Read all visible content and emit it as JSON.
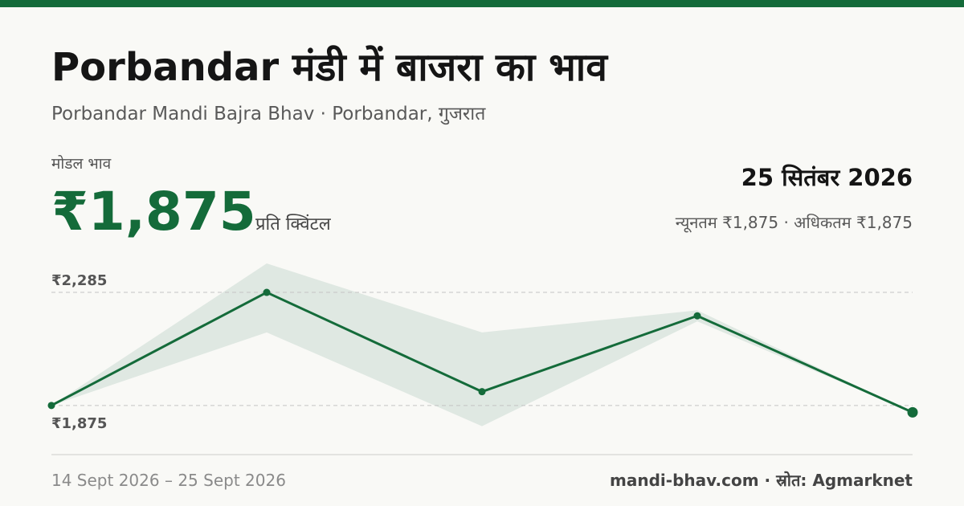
{
  "header": {
    "title": "Porbandar मंडी में बाजरा का भाव",
    "subtitle": "Porbandar Mandi Bajra Bhav · Porbandar, गुजरात"
  },
  "price": {
    "label": "मोडल भाव",
    "value": "₹1,875",
    "unit": "प्रति क्विंटल",
    "date": "25 सितंबर 2026",
    "min_max": "न्यूनतम ₹1,875 · अधिकतम ₹1,875"
  },
  "footer": {
    "date_range": "14 Sept 2026 – 25 Sept 2026",
    "source": "mandi-bhav.com · स्रोत: Agmarknet"
  },
  "colors": {
    "accent": "#146b3a",
    "band": "#dfe8e2",
    "gridline": "#c4c4c4"
  },
  "chart_data": {
    "type": "line",
    "series": [
      {
        "values": [
          1875,
          2285,
          1925,
          2200,
          1850
        ]
      }
    ],
    "band": {
      "min": [
        1875,
        2140,
        1800,
        2180,
        1850
      ],
      "max": [
        1875,
        2390,
        2140,
        2220,
        1850
      ]
    },
    "gridlines": [
      2285,
      1875
    ],
    "tick_labels": [
      "₹2,285",
      "₹1,875"
    ],
    "ylim": [
      1790,
      2390
    ],
    "grid": true,
    "legend": "none"
  }
}
